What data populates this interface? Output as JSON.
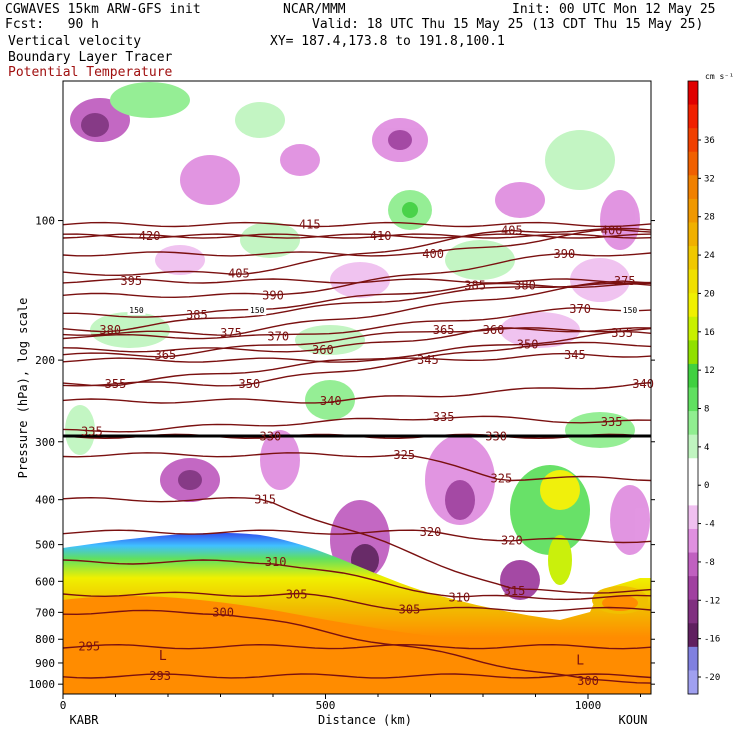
{
  "header": {
    "model": "CGWAVES 15km ARW-GFS init",
    "forecast": "Fcst:   90 h",
    "org": "NCAR/MMM",
    "init": "Init: 00 UTC Mon 12 May 25",
    "valid": "Valid: 18 UTC Thu 15 May 25 (13 CDT Thu 15 May 25)",
    "xy": "XY= 187.4,173.8 to 191.8,100.1",
    "field1": "Vertical velocity",
    "field2": "Boundary Layer Tracer",
    "field3": "Potential Temperature"
  },
  "colors": {
    "theta_contour": "#7a1010",
    "tropopause_line": "#000000",
    "terrain_fill": "#ff8c00"
  },
  "chart_data": {
    "type": "cross-section",
    "xlabel": "Distance (km)",
    "ylabel": "Pressure (hPa), log scale",
    "xlim": [
      0,
      1120
    ],
    "x_ticks": [
      0,
      500,
      1000
    ],
    "y_ticks": [
      100,
      200,
      300,
      400,
      500,
      600,
      700,
      800,
      900,
      1000
    ],
    "y_scale": "log",
    "left_station": "KABR",
    "right_station": "KOUN",
    "colorbar": {
      "unit": "cm s⁻¹",
      "labels": [
        36,
        32,
        28,
        24,
        20,
        16,
        12,
        8,
        4,
        0,
        -4,
        -8,
        -12,
        -16,
        -20
      ],
      "colors": [
        "#e00000",
        "#f02000",
        "#f04000",
        "#f06000",
        "#f08000",
        "#f09800",
        "#f0b000",
        "#f0c800",
        "#f0e000",
        "#f0f000",
        "#c8f000",
        "#90e000",
        "#40d040",
        "#60e060",
        "#90ee90",
        "#c0f5c0",
        "#ffffff",
        "#ffffff",
        "#f0c0f0",
        "#e090e0",
        "#c060c0",
        "#a040a0",
        "#803080",
        "#602060",
        "#8080e0",
        "#a0a0f0"
      ]
    },
    "theta_labels": [
      {
        "value": 420,
        "x": 165,
        "p": 108
      },
      {
        "value": 415,
        "x": 470,
        "p": 102
      },
      {
        "value": 410,
        "x": 605,
        "p": 108
      },
      {
        "value": 405,
        "x": 335,
        "p": 130
      },
      {
        "value": 405,
        "x": 855,
        "p": 105
      },
      {
        "value": 400,
        "x": 705,
        "p": 118
      },
      {
        "value": 400,
        "x": 1045,
        "p": 105
      },
      {
        "value": 395,
        "x": 130,
        "p": 135
      },
      {
        "value": 390,
        "x": 400,
        "p": 145
      },
      {
        "value": 390,
        "x": 955,
        "p": 118
      },
      {
        "value": 385,
        "x": 255,
        "p": 160
      },
      {
        "value": 385,
        "x": 785,
        "p": 138
      },
      {
        "value": 380,
        "x": 90,
        "p": 172
      },
      {
        "value": 380,
        "x": 880,
        "p": 138
      },
      {
        "value": 375,
        "x": 320,
        "p": 175
      },
      {
        "value": 375,
        "x": 1070,
        "p": 135
      },
      {
        "value": 370,
        "x": 410,
        "p": 178
      },
      {
        "value": 370,
        "x": 985,
        "p": 155
      },
      {
        "value": 365,
        "x": 195,
        "p": 195
      },
      {
        "value": 365,
        "x": 725,
        "p": 172
      },
      {
        "value": 360,
        "x": 495,
        "p": 190
      },
      {
        "value": 360,
        "x": 820,
        "p": 172
      },
      {
        "value": 355,
        "x": 100,
        "p": 225
      },
      {
        "value": 355,
        "x": 1065,
        "p": 175
      },
      {
        "value": 350,
        "x": 355,
        "p": 225
      },
      {
        "value": 350,
        "x": 885,
        "p": 185
      },
      {
        "value": 345,
        "x": 695,
        "p": 200
      },
      {
        "value": 345,
        "x": 975,
        "p": 195
      },
      {
        "value": 340,
        "x": 510,
        "p": 245
      },
      {
        "value": 340,
        "x": 1105,
        "p": 225
      },
      {
        "value": 335,
        "x": 55,
        "p": 285
      },
      {
        "value": 335,
        "x": 725,
        "p": 265
      },
      {
        "value": 335,
        "x": 1045,
        "p": 272
      },
      {
        "value": 330,
        "x": 395,
        "p": 292
      },
      {
        "value": 330,
        "x": 825,
        "p": 292
      },
      {
        "value": 325,
        "x": 650,
        "p": 320
      },
      {
        "value": 325,
        "x": 835,
        "p": 360
      },
      {
        "value": 320,
        "x": 700,
        "p": 470
      },
      {
        "value": 320,
        "x": 855,
        "p": 490
      },
      {
        "value": 315,
        "x": 385,
        "p": 400
      },
      {
        "value": 315,
        "x": 860,
        "p": 630
      },
      {
        "value": 310,
        "x": 405,
        "p": 545
      },
      {
        "value": 310,
        "x": 755,
        "p": 650
      },
      {
        "value": 305,
        "x": 445,
        "p": 640
      },
      {
        "value": 305,
        "x": 660,
        "p": 690
      },
      {
        "value": 300,
        "x": 305,
        "p": 700
      },
      {
        "value": 300,
        "x": 1000,
        "p": 985
      },
      {
        "value": 295,
        "x": 50,
        "p": 830
      },
      {
        "value": 293,
        "x": 185,
        "p": 960
      }
    ],
    "tropopause_marks": [
      {
        "value": 150,
        "x": 140,
        "p": 156
      },
      {
        "value": 150,
        "x": 370,
        "p": 156
      },
      {
        "value": 150,
        "x": 1080,
        "p": 156
      }
    ],
    "low_marks": [
      {
        "value": "L",
        "x": 190,
        "p": 870
      },
      {
        "value": "L",
        "x": 985,
        "p": 890
      }
    ]
  }
}
